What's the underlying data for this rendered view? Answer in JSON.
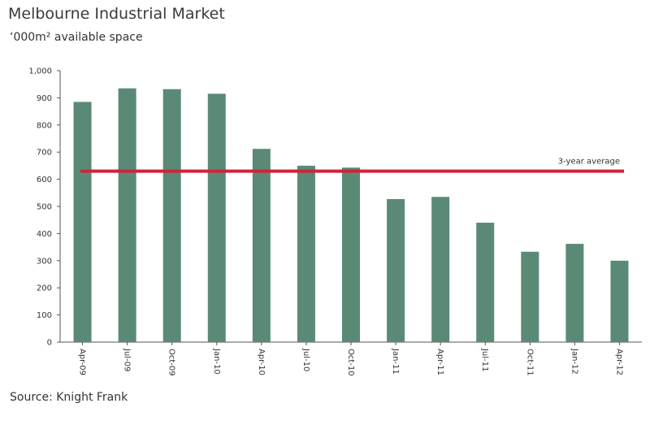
{
  "header": {
    "title": "Melbourne Industrial Market",
    "subtitle": "‘000m² available space"
  },
  "footer": {
    "source": "Source: Knight Frank"
  },
  "colors": {
    "bar": "#5A8A76",
    "reference_line": "#D0233B",
    "axis": "#555555"
  },
  "chart_data": {
    "type": "bar",
    "title": "Melbourne Industrial Market",
    "subtitle": "‘000m² available space",
    "xlabel": "",
    "ylabel": "",
    "categories": [
      "Apr-09",
      "Jul-09",
      "Oct-09",
      "Jan-10",
      "Apr-10",
      "Jul-10",
      "Oct-10",
      "Jan-11",
      "Apr-11",
      "Jul-11",
      "Oct-11",
      "Jan-12",
      "Apr-12"
    ],
    "values": [
      885,
      935,
      932,
      915,
      712,
      650,
      643,
      527,
      535,
      440,
      333,
      362,
      300
    ],
    "ylim": [
      0,
      1000
    ],
    "yticks": [
      0,
      100,
      200,
      300,
      400,
      500,
      600,
      700,
      800,
      900,
      1000
    ],
    "ytick_labels": [
      "0",
      "100",
      "200",
      "300",
      "400",
      "500",
      "600",
      "700",
      "800",
      "900",
      "1,000"
    ],
    "reference_line": {
      "label": "3-year average",
      "value": 630
    },
    "grid": false,
    "legend": "none"
  }
}
